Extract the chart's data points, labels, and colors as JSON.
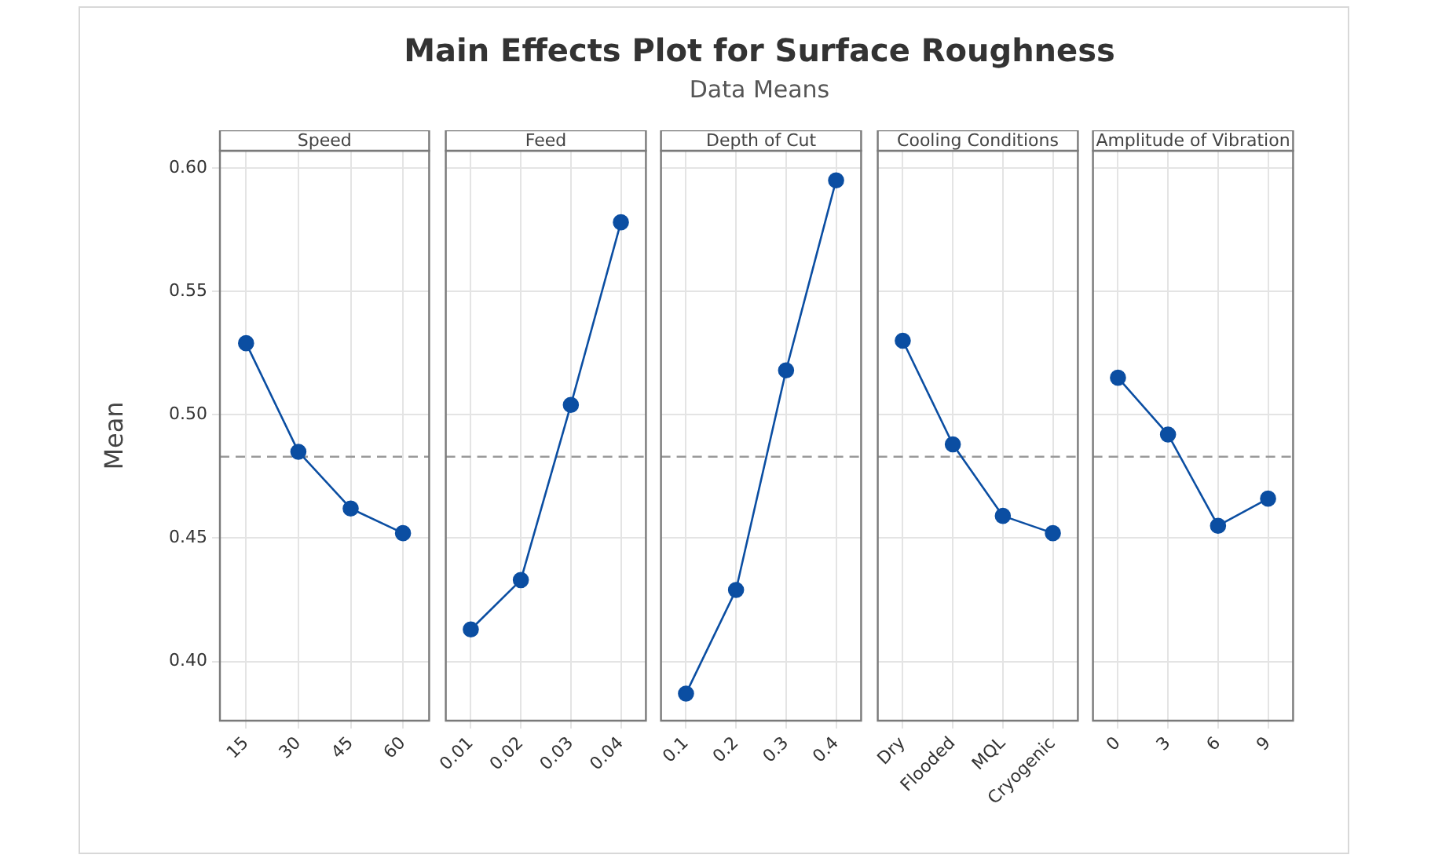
{
  "chart_data": [
    {
      "type": "line",
      "xlabel": "Speed",
      "ylabel": "Mean",
      "categories": [
        "15",
        "30",
        "45",
        "60"
      ],
      "series": [
        {
          "color": "#0b4ea2",
          "values": [
            0.529,
            0.485,
            0.462,
            0.452
          ]
        }
      ],
      "ylim": [
        0.376,
        0.607
      ],
      "yticks": [
        {
          "value": 0.4,
          "label": "0.40"
        },
        {
          "value": 0.45,
          "label": "0.45"
        },
        {
          "value": 0.5,
          "label": "0.50"
        },
        {
          "value": 0.55,
          "label": "0.55"
        },
        {
          "value": 0.6,
          "label": "0.60"
        }
      ],
      "ref_lines": [
        {
          "axis": "y",
          "value": 0.483,
          "color": "#9a9a9a",
          "line_style": "dashed"
        }
      ],
      "grid": true,
      "marker": "circle"
    },
    {
      "type": "line",
      "xlabel": "Feed",
      "categories": [
        "0.01",
        "0.02",
        "0.03",
        "0.04"
      ],
      "series": [
        {
          "color": "#0b4ea2",
          "values": [
            0.413,
            0.433,
            0.504,
            0.578
          ]
        }
      ],
      "ylim": [
        0.376,
        0.607
      ],
      "yticks": [
        {
          "value": 0.4,
          "label": null
        },
        {
          "value": 0.45,
          "label": null
        },
        {
          "value": 0.5,
          "label": null
        },
        {
          "value": 0.55,
          "label": null
        },
        {
          "value": 0.6,
          "label": null
        }
      ],
      "ref_lines": [
        {
          "axis": "y",
          "value": 0.483,
          "color": "#9a9a9a",
          "line_style": "dashed"
        }
      ],
      "grid": true,
      "marker": "circle",
      "tick_labels": "x"
    },
    {
      "type": "line",
      "title": "Main Effects Plot for Surface Roughness",
      "subtitle": "Data Means",
      "xlabel": "Depth of Cut",
      "categories": [
        "0.1",
        "0.2",
        "0.3",
        "0.4"
      ],
      "series": [
        {
          "color": "#0b4ea2",
          "values": [
            0.387,
            0.429,
            0.518,
            0.595
          ]
        }
      ],
      "ylim": [
        0.376,
        0.607
      ],
      "yticks": [
        {
          "value": 0.4,
          "label": null
        },
        {
          "value": 0.45,
          "label": null
        },
        {
          "value": 0.5,
          "label": null
        },
        {
          "value": 0.55,
          "label": null
        },
        {
          "value": 0.6,
          "label": null
        }
      ],
      "ref_lines": [
        {
          "axis": "y",
          "value": 0.483,
          "color": "#9a9a9a",
          "line_style": "dashed"
        }
      ],
      "grid": true,
      "marker": "circle",
      "tick_labels": "x"
    },
    {
      "type": "line",
      "xlabel": "Cooling Conditions",
      "categories": [
        "Dry",
        "Flooded",
        "MQL",
        "Cryogenic"
      ],
      "series": [
        {
          "color": "#0b4ea2",
          "values": [
            0.53,
            0.488,
            0.459,
            0.452
          ]
        }
      ],
      "ylim": [
        0.376,
        0.607
      ],
      "yticks": [
        {
          "value": 0.4,
          "label": null
        },
        {
          "value": 0.45,
          "label": null
        },
        {
          "value": 0.5,
          "label": null
        },
        {
          "value": 0.55,
          "label": null
        },
        {
          "value": 0.6,
          "label": null
        }
      ],
      "ref_lines": [
        {
          "axis": "y",
          "value": 0.483,
          "color": "#9a9a9a",
          "line_style": "dashed"
        }
      ],
      "grid": true,
      "marker": "circle",
      "tick_labels": "x"
    },
    {
      "type": "line",
      "xlabel": "Amplitude of Vibration",
      "categories": [
        "0",
        "3",
        "6",
        "9"
      ],
      "series": [
        {
          "color": "#0b4ea2",
          "values": [
            0.515,
            0.492,
            0.455,
            0.466
          ]
        }
      ],
      "ylim": [
        0.376,
        0.607
      ],
      "yticks": [
        {
          "value": 0.4,
          "label": null
        },
        {
          "value": 0.45,
          "label": null
        },
        {
          "value": 0.5,
          "label": null
        },
        {
          "value": 0.55,
          "label": null
        },
        {
          "value": 0.6,
          "label": null
        }
      ],
      "ref_lines": [
        {
          "axis": "y",
          "value": 0.483,
          "color": "#9a9a9a",
          "line_style": "dashed"
        }
      ],
      "grid": true,
      "marker": "circle",
      "tick_labels": "x"
    }
  ]
}
